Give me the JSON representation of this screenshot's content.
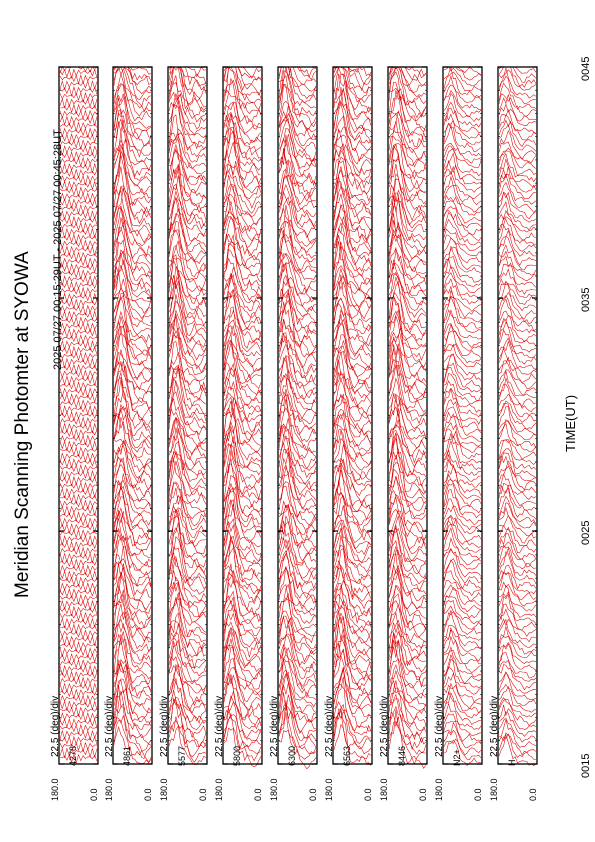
{
  "title": "Meridian Scanning Photomter at SYOWA",
  "time_range": "2025 07/27 00:15:29UT - 2025 07/27 00:45:28UT",
  "colors": {
    "trace": "#dd0000",
    "frame": "#000000"
  },
  "chart_data": {
    "type": "line",
    "title": "Meridian Scanning Photomter at SYOWA",
    "xlabel": "TIME(UT)",
    "x_ticks": [
      "0015",
      "0025",
      "0035",
      "0045"
    ],
    "x_range": [
      "0015",
      "0045"
    ],
    "scale_label": "22.5 (deg)/div",
    "panel_axis": {
      "top_value": "180.0",
      "bottom_value": "0.0"
    },
    "panels": [
      {
        "channel": "4278"
      },
      {
        "channel": "4861"
      },
      {
        "channel": "5577"
      },
      {
        "channel": "5800"
      },
      {
        "channel": "6300"
      },
      {
        "channel": "6563"
      },
      {
        "channel": "8446"
      },
      {
        "channel": "N2+"
      },
      {
        "channel": "H"
      }
    ]
  }
}
